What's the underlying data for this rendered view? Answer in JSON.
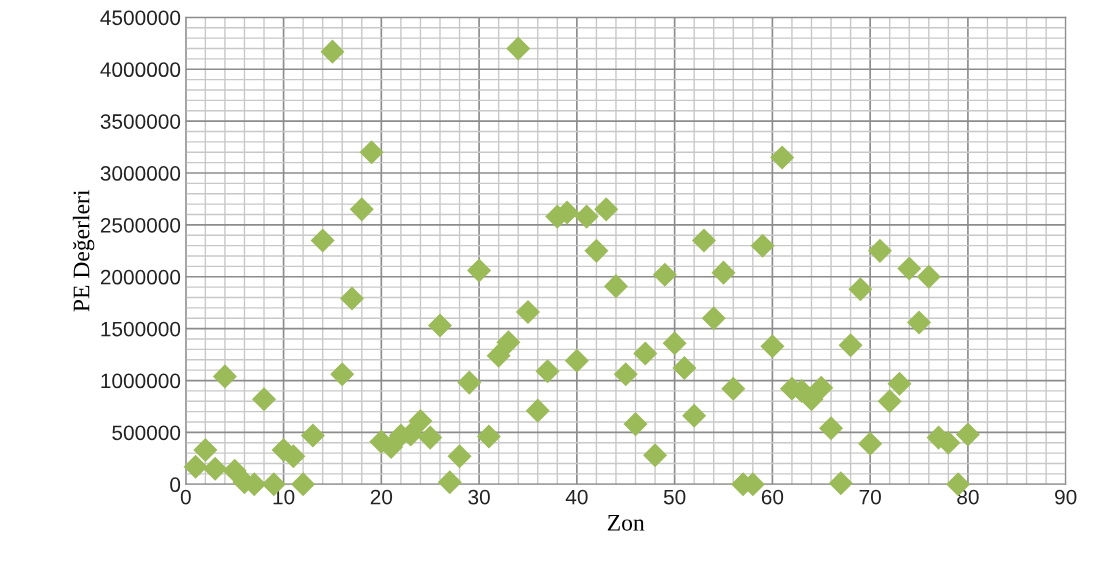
{
  "chart_data": {
    "type": "scatter",
    "xlabel": "Zon",
    "ylabel": "PE Değerleri",
    "x": [
      1,
      2,
      3,
      4,
      5,
      6,
      7,
      8,
      9,
      10,
      11,
      12,
      13,
      14,
      15,
      16,
      17,
      18,
      19,
      20,
      21,
      22,
      23,
      24,
      25,
      26,
      27,
      28,
      29,
      30,
      31,
      32,
      33,
      34,
      35,
      36,
      37,
      38,
      39,
      40,
      41,
      42,
      43,
      44,
      45,
      46,
      47,
      48,
      49,
      50,
      51,
      52,
      53,
      54,
      55,
      56,
      57,
      58,
      59,
      60,
      61,
      62,
      63,
      64,
      65,
      66,
      67,
      68,
      69,
      70,
      71,
      72,
      73,
      74,
      75,
      76,
      77,
      78,
      79,
      80
    ],
    "values": [
      170000,
      330000,
      150000,
      1040000,
      130000,
      20000,
      0,
      820000,
      0,
      330000,
      270000,
      0,
      470000,
      2350000,
      4170000,
      1060000,
      1790000,
      2650000,
      3200000,
      410000,
      360000,
      470000,
      480000,
      610000,
      450000,
      1530000,
      20000,
      270000,
      980000,
      2060000,
      460000,
      1240000,
      1370000,
      4200000,
      1660000,
      710000,
      1090000,
      2580000,
      2620000,
      1190000,
      2580000,
      2250000,
      2650000,
      1910000,
      1060000,
      580000,
      1260000,
      280000,
      2020000,
      1360000,
      1120000,
      660000,
      2350000,
      1600000,
      2040000,
      920000,
      0,
      0,
      2300000,
      1330000,
      3150000,
      920000,
      900000,
      820000,
      930000,
      540000,
      10000,
      1340000,
      1880000,
      390000,
      2250000,
      800000,
      970000,
      2080000,
      1560000,
      2000000,
      450000,
      400000,
      0,
      480000
    ],
    "color": "#9bbb59",
    "marker": "diamond",
    "xlim": [
      0,
      90
    ],
    "xticks": [
      0,
      10,
      20,
      30,
      40,
      50,
      60,
      70,
      80,
      90
    ],
    "ylim": [
      0,
      4500000
    ],
    "yticks": [
      0,
      500000,
      1000000,
      1500000,
      2000000,
      2500000,
      3000000,
      3500000,
      4000000,
      4500000
    ],
    "grid": true,
    "legend": false
  }
}
